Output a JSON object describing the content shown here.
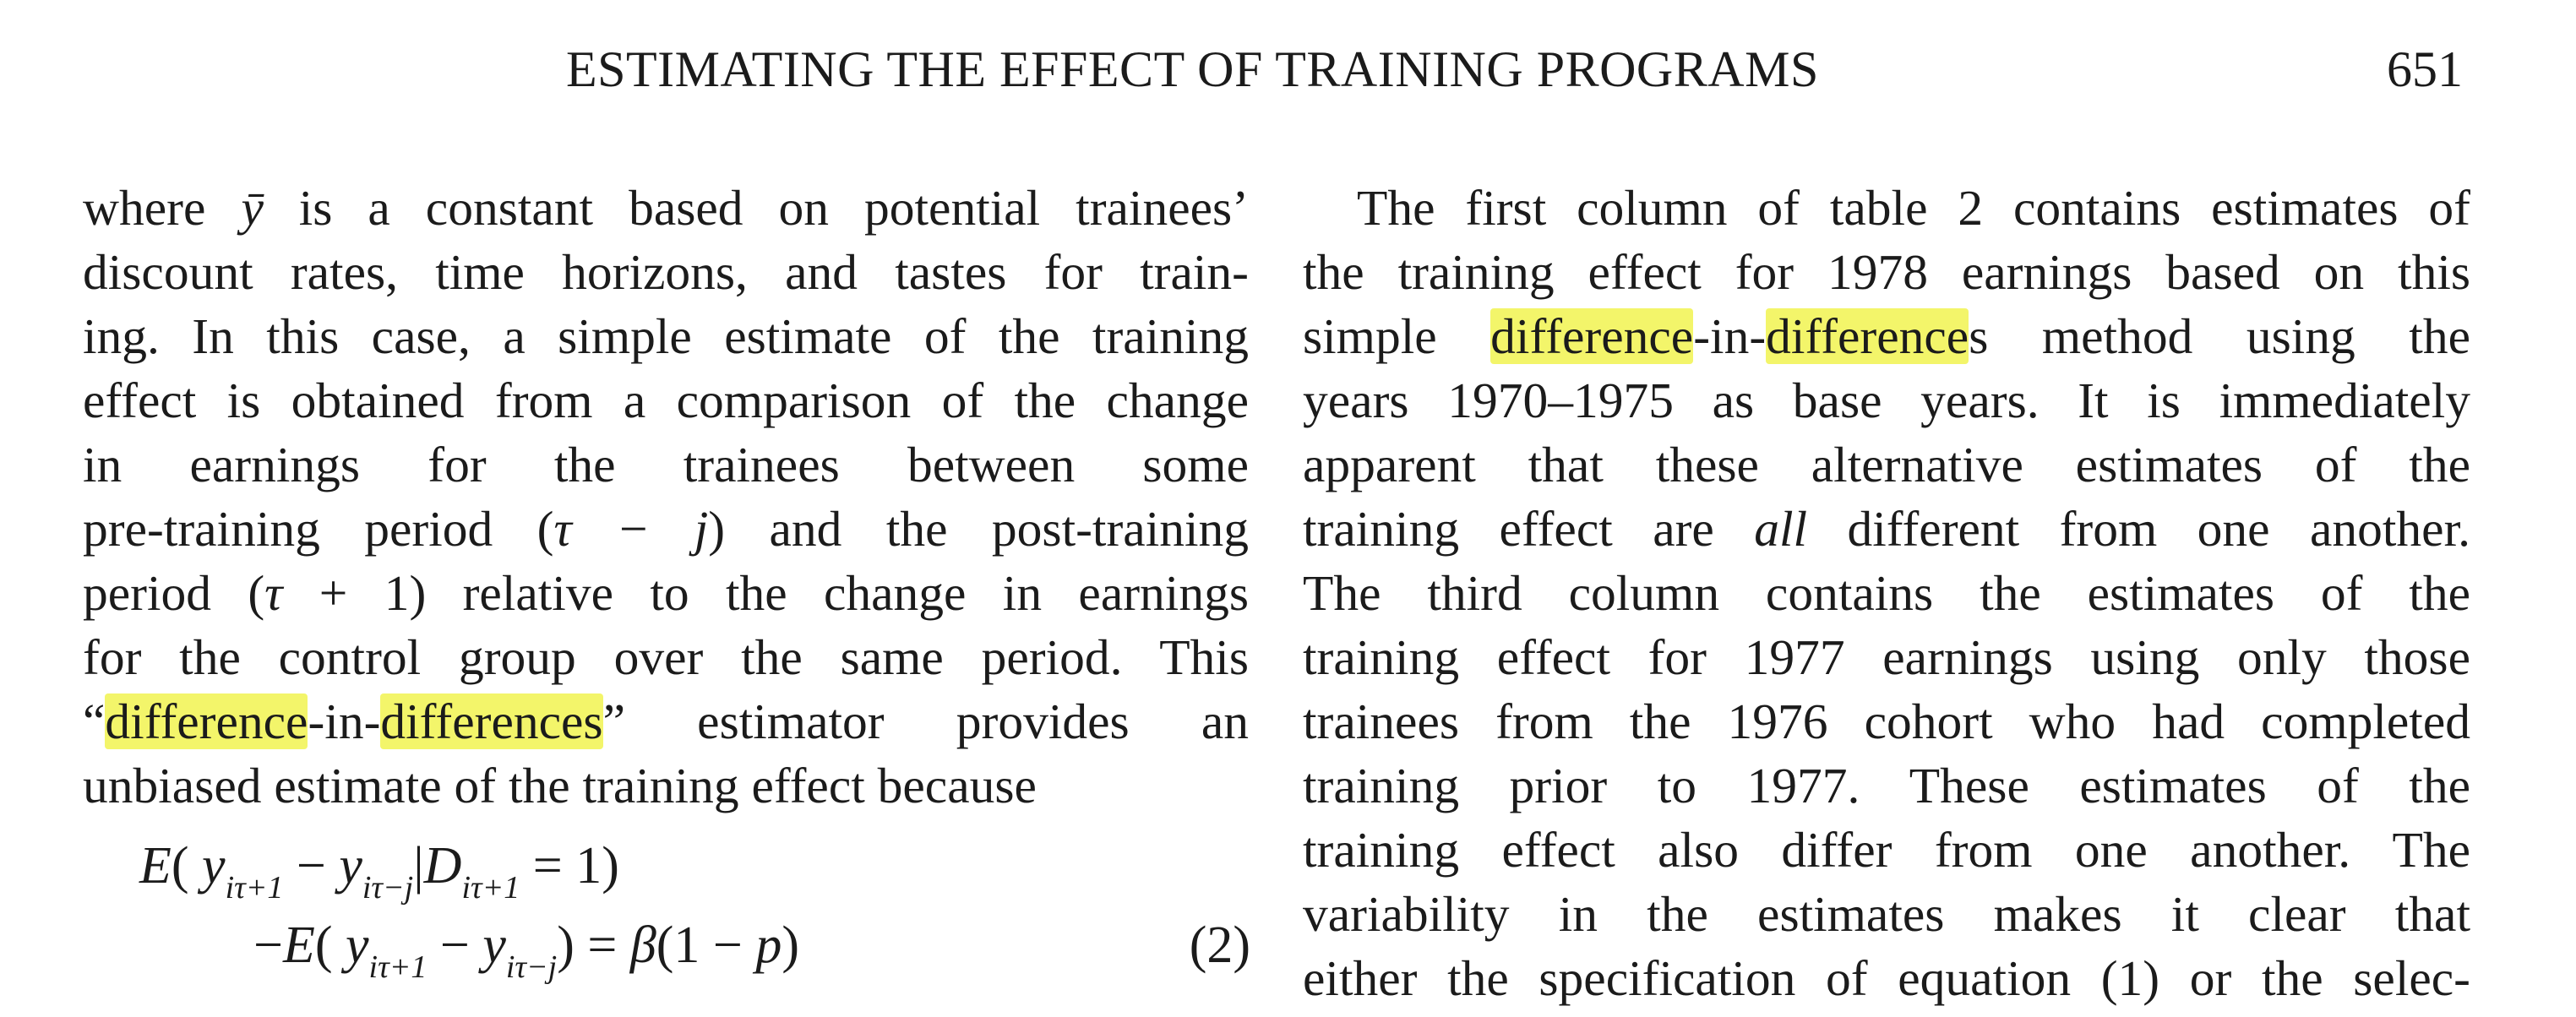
{
  "header": {
    "title": "ESTIMATING THE EFFECT OF TRAINING PROGRAMS",
    "page_number": "651"
  },
  "left_column": {
    "lines": [
      [
        "where ",
        "ȳ",
        " is a constant based on potential trainees’"
      ],
      "discount rates, time horizons, and tastes for train-",
      "ing. In this case, a simple estimate of the training",
      "effect is obtained from a comparison of the change",
      "in earnings for the trainees between some",
      [
        "pre-training period (",
        "τ − j",
        ") and the post-training"
      ],
      [
        "period (",
        "τ",
        " + 1) relative to the change in earnings"
      ],
      "for the control group over the same period. This",
      [
        "“",
        "difference",
        "-in-",
        "differences",
        "” estimator provides an"
      ],
      "unbiased estimate of the training effect because"
    ]
  },
  "equation": {
    "line1": "E( y_{iτ+1} − y_{iτ−j} | D_{iτ+1} = 1)",
    "line2": "−E( y_{iτ+1} − y_{iτ−j}) = β(1 − p)",
    "number": "(2)"
  },
  "right_column": {
    "lines": [
      "The first column of table 2 contains estimates of",
      "the training effect for 1978 earnings based on this",
      [
        "simple ",
        "difference",
        "-in-",
        "difference",
        "s method using the"
      ],
      "years 1970–1975 as base years. It is immediately",
      "apparent that these alternative estimates of the",
      [
        "training effect are ",
        "all",
        " different from one another."
      ],
      "The third column contains the estimates of the",
      "training effect for 1977 earnings using only those",
      "trainees from the 1976 cohort who had completed",
      "training prior to 1977. These estimates of the",
      "training effect also differ from one another. The",
      "variability in the estimates makes it clear that",
      "either the specification of equation (1) or the selec-"
    ]
  },
  "colors": {
    "highlight": "#f3f56a",
    "text": "#1b1b1b"
  }
}
